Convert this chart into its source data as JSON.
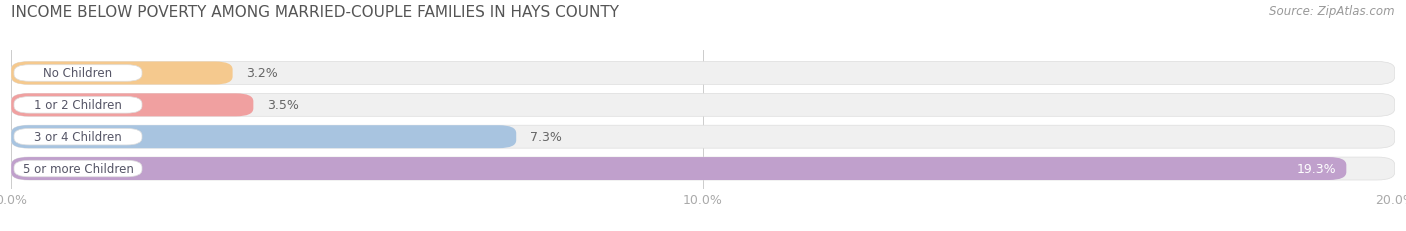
{
  "title": "INCOME BELOW POVERTY AMONG MARRIED-COUPLE FAMILIES IN HAYS COUNTY",
  "source": "Source: ZipAtlas.com",
  "categories": [
    "No Children",
    "1 or 2 Children",
    "3 or 4 Children",
    "5 or more Children"
  ],
  "values": [
    3.2,
    3.5,
    7.3,
    19.3
  ],
  "bar_colors": [
    "#f5c98e",
    "#f0a0a0",
    "#a8c4e0",
    "#c0a0cc"
  ],
  "label_colors": [
    "#555555",
    "#555555",
    "#555555",
    "#ffffff"
  ],
  "xlim": [
    0,
    20.0
  ],
  "xticks": [
    0.0,
    10.0,
    20.0
  ],
  "xticklabels": [
    "0.0%",
    "10.0%",
    "20.0%"
  ],
  "title_fontsize": 11,
  "bar_label_fontsize": 9,
  "category_fontsize": 8.5,
  "tick_fontsize": 9,
  "source_fontsize": 8.5,
  "title_color": "#555555",
  "source_color": "#999999",
  "tick_color": "#aaaaaa",
  "background_color": "#ffffff",
  "bar_bg_color": "#f0f0f0",
  "bar_height": 0.72,
  "bar_gap": 0.18
}
